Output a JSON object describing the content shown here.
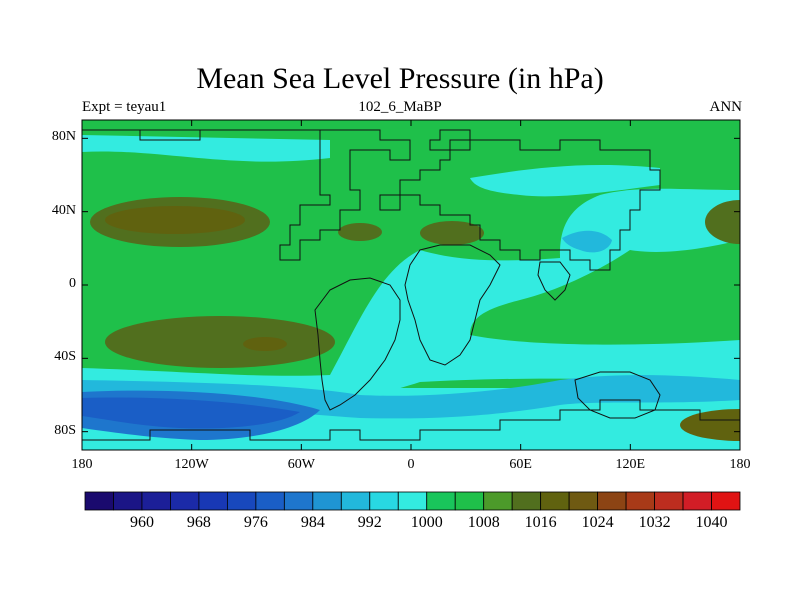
{
  "title": "Mean Sea Level Pressure (in hPa)",
  "left_string": "Expt = teyau1",
  "center_string": "102_6_MaBP",
  "right_string": "ANN",
  "axes": {
    "lon_ticks": [
      {
        "label": "180",
        "value": -180
      },
      {
        "label": "120W",
        "value": -120
      },
      {
        "label": "60W",
        "value": -60
      },
      {
        "label": "0",
        "value": 0
      },
      {
        "label": "60E",
        "value": 60
      },
      {
        "label": "120E",
        "value": 120
      },
      {
        "label": "180",
        "value": 180
      }
    ],
    "lat_ticks": [
      {
        "label": "80N",
        "value": 80
      },
      {
        "label": "40N",
        "value": 40
      },
      {
        "label": "0",
        "value": 0
      },
      {
        "label": "40S",
        "value": -40
      },
      {
        "label": "80S",
        "value": -80
      }
    ],
    "lon_range": [
      -180,
      180
    ],
    "lat_range": [
      -90,
      90
    ]
  },
  "colorbar": {
    "levels": [
      956,
      960,
      964,
      968,
      972,
      976,
      980,
      984,
      988,
      992,
      996,
      1000,
      1004,
      1008,
      1012,
      1016,
      1020,
      1024,
      1028,
      1032,
      1036,
      1040
    ],
    "colors": [
      "#1a0a6e",
      "#1b1586",
      "#1c1f98",
      "#1b2aa8",
      "#1838b5",
      "#1848bd",
      "#1a5ec6",
      "#1e76cd",
      "#1f95d3",
      "#22b8dc",
      "#28d8e2",
      "#33ebe0",
      "#19c55b",
      "#1fc04a",
      "#4c9a2a",
      "#516f1e",
      "#60620f",
      "#6f5a12",
      "#8c4414",
      "#a83a18",
      "#bd2d1f",
      "#d21d26",
      "#e01313"
    ],
    "labels": [
      {
        "label": "960",
        "value": 960
      },
      {
        "label": "968",
        "value": 968
      },
      {
        "label": "976",
        "value": 976
      },
      {
        "label": "984",
        "value": 984
      },
      {
        "label": "992",
        "value": 992
      },
      {
        "label": "1000",
        "value": 1000
      },
      {
        "label": "1008",
        "value": 1008
      },
      {
        "label": "1016",
        "value": 1016
      },
      {
        "label": "1024",
        "value": 1024
      },
      {
        "label": "1032",
        "value": 1032
      },
      {
        "label": "1040",
        "value": 1040
      }
    ]
  },
  "colors": {
    "background_field": "#1fc04a",
    "cyan_field": "#33ebe0",
    "light_blue_field": "#22b8dc",
    "blue_field": "#1e76cd",
    "dark_blue_field": "#1a5ec6",
    "olive_field": "#516f1e",
    "dark_olive_field": "#60620f",
    "coast_line": "#111111"
  }
}
